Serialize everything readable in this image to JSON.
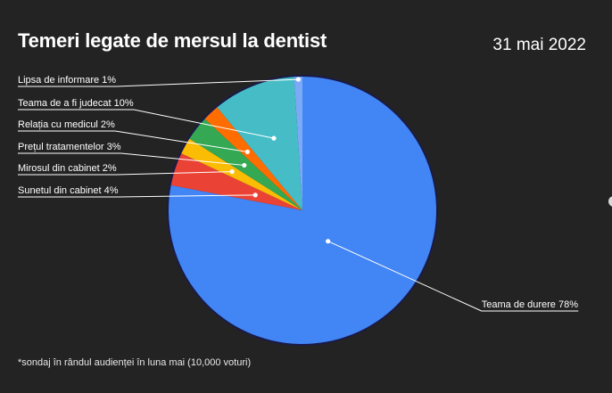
{
  "header": {
    "title": "Temeri legate de mersul la dentist",
    "date": "31 mai 2022"
  },
  "footnote": "*sondaj în rândul audienței în luna mai (10,000 voturi)",
  "chart_data": {
    "type": "pie",
    "start_angle": "top, clockwise",
    "slices": [
      {
        "label": "Teama de durere 78%",
        "value": 78,
        "color": "#4285f4"
      },
      {
        "label": "Sunetul din cabinet 4%",
        "value": 4,
        "color": "#ea4335"
      },
      {
        "label": "Mirosul din cabinet 2%",
        "value": 2,
        "color": "#fbbc04"
      },
      {
        "label": "Prețul tratamentelor 3%",
        "value": 3,
        "color": "#34a853"
      },
      {
        "label": "Relația cu medicul 2%",
        "value": 2,
        "color": "#ff6d01"
      },
      {
        "label": "Teama de a fi judecat 10%",
        "value": 10,
        "color": "#46bdc6"
      },
      {
        "label": "Lipsa de informare 1%",
        "value": 1,
        "color": "#7baaf7"
      }
    ],
    "title": "Temeri legate de mersul la dentist"
  }
}
